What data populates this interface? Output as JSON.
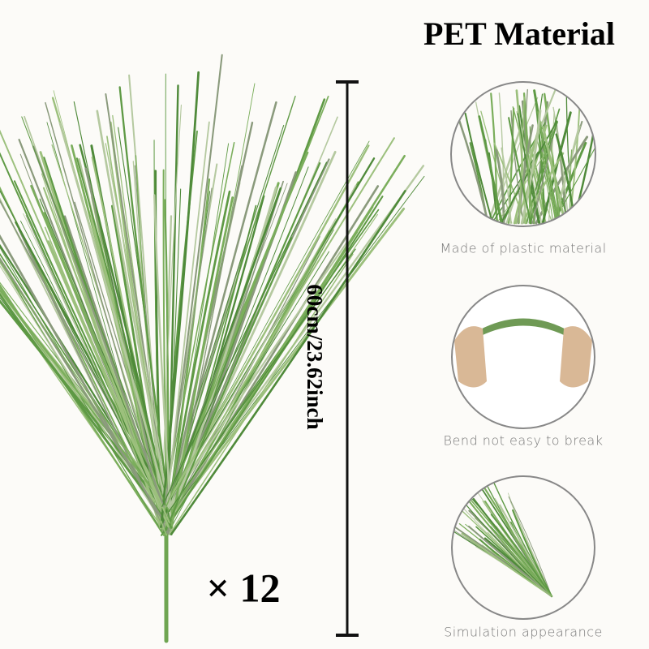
{
  "header": {
    "title": "PET Material"
  },
  "product": {
    "size": "60cm/23.62inch",
    "quantity": "× 12"
  },
  "features": [
    {
      "label": "Made of plastic material"
    },
    {
      "label": "Bend not easy to break"
    },
    {
      "label": "Simulation appearance"
    }
  ]
}
